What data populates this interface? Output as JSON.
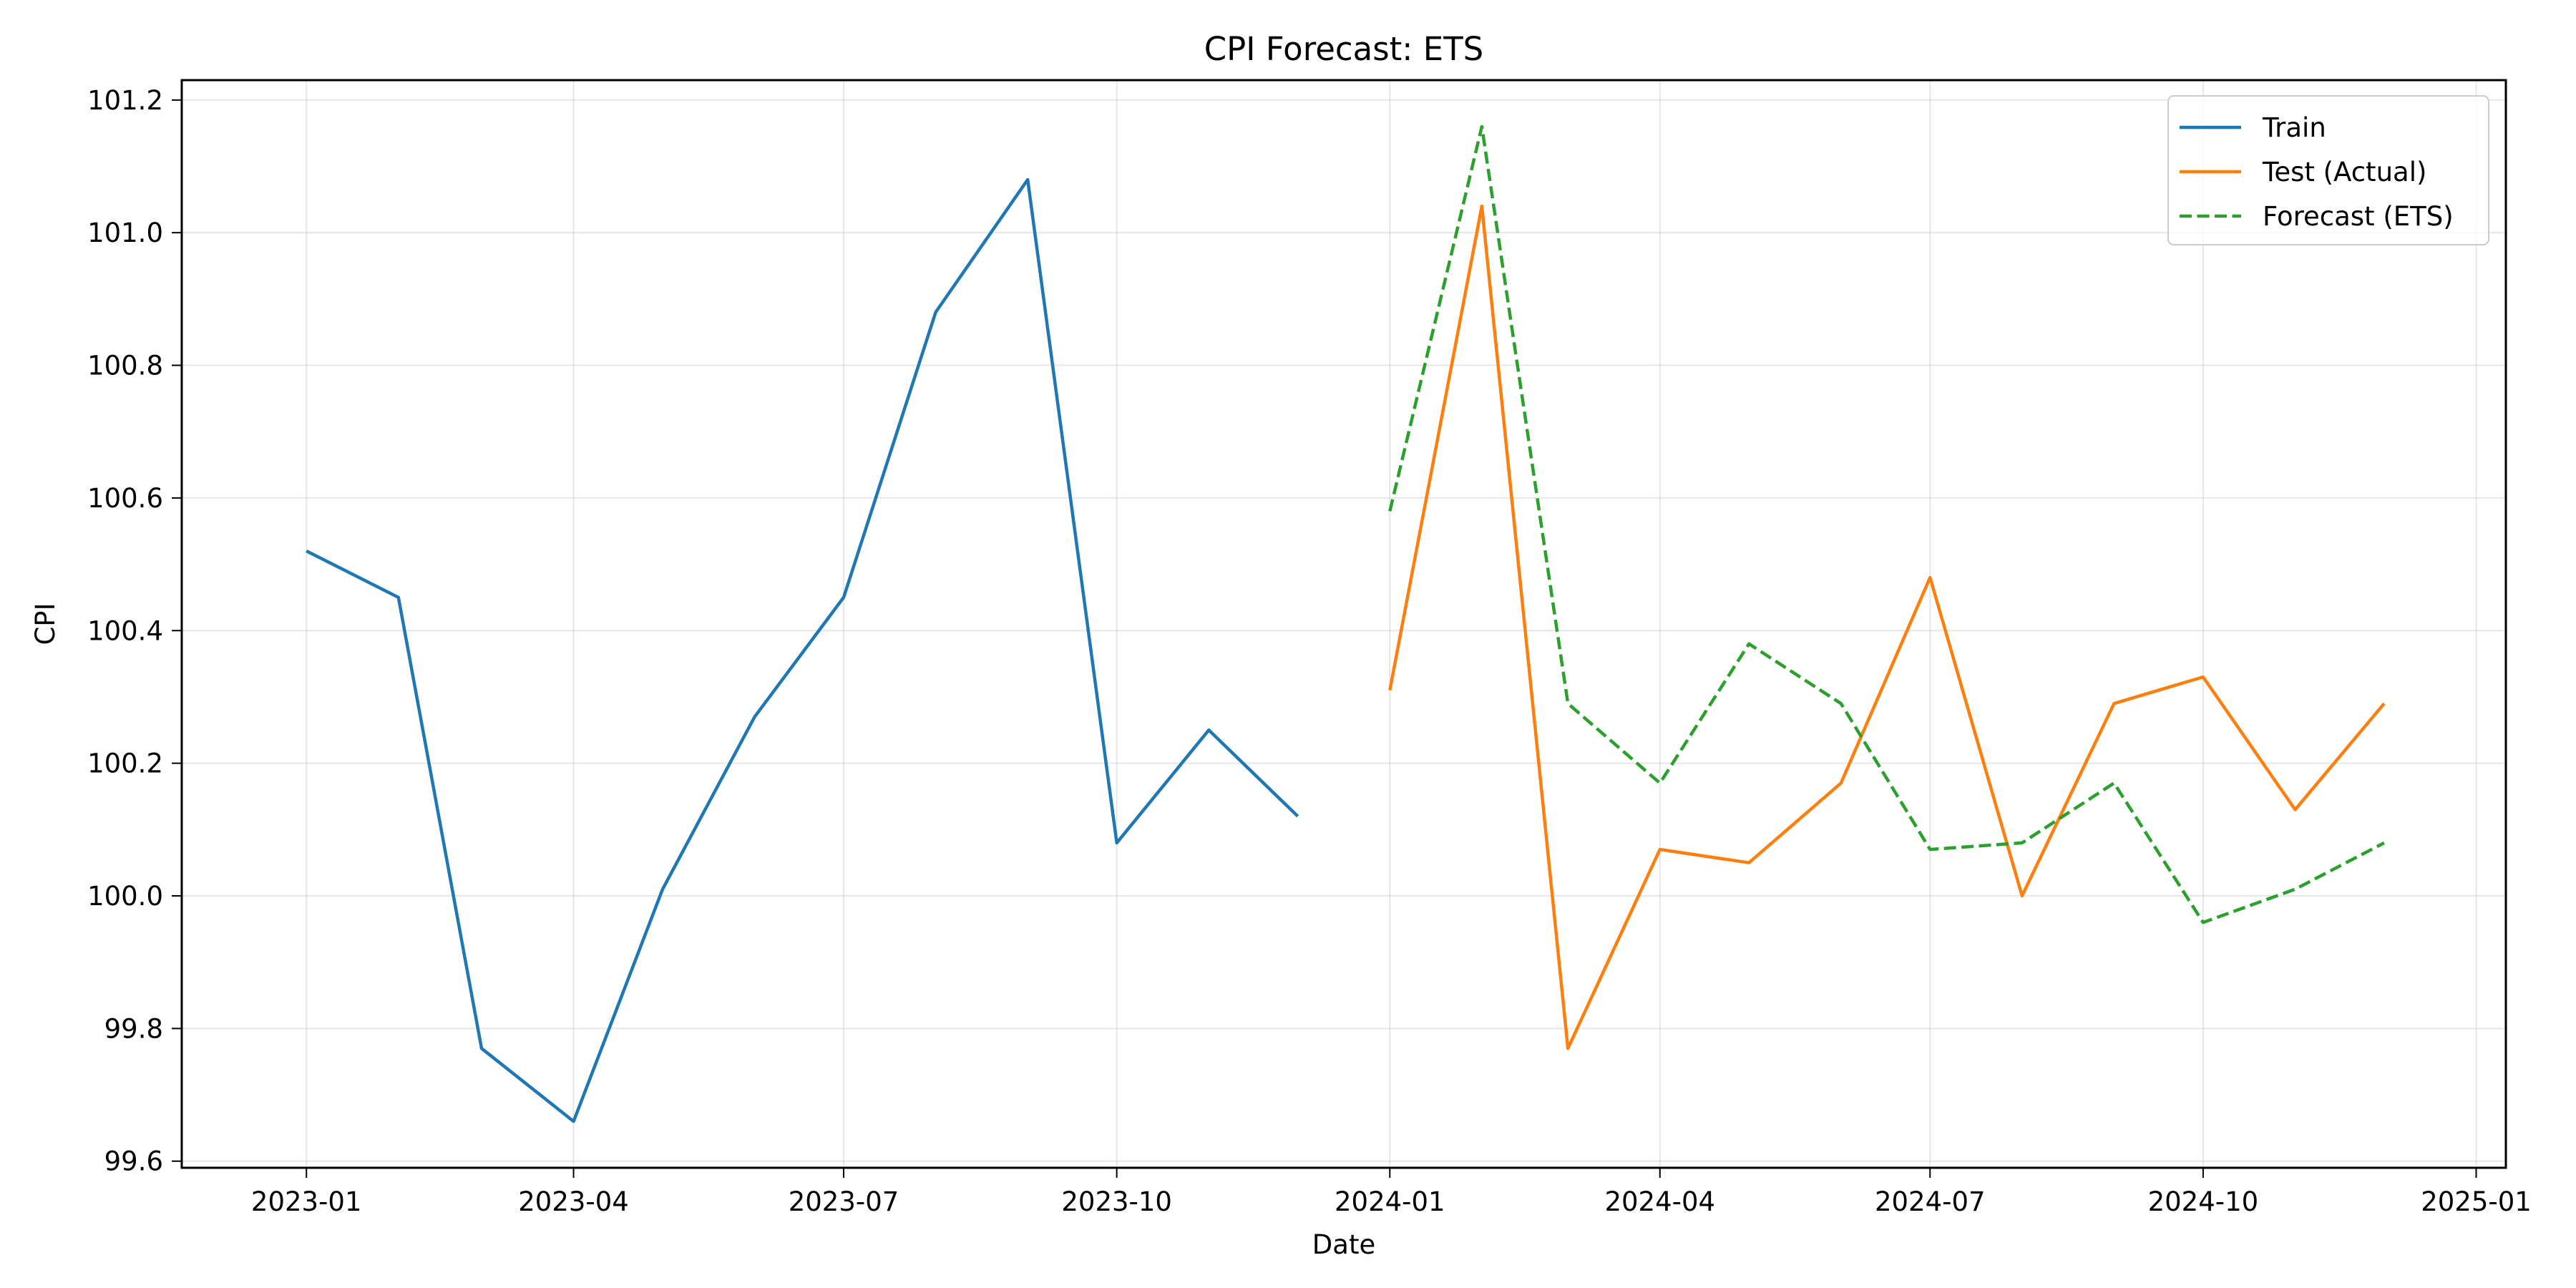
{
  "chart_data": {
    "type": "line",
    "title": "CPI Forecast: ETS",
    "xlabel": "Date",
    "ylabel": "CPI",
    "x_axis_type": "date",
    "xlim": [
      "2022-11-20",
      "2025-01-11"
    ],
    "ylim": [
      99.59,
      101.23
    ],
    "x_ticks": [
      "2023-01",
      "2023-04",
      "2023-07",
      "2023-10",
      "2024-01",
      "2024-04",
      "2024-07",
      "2024-10",
      "2025-01"
    ],
    "y_ticks": [
      99.6,
      99.8,
      100.0,
      100.2,
      100.4,
      100.6,
      100.8,
      101.0,
      101.2
    ],
    "grid": true,
    "legend_position": "top-right",
    "series": [
      {
        "name": "Train",
        "color": "#1f77b4",
        "line_style": "solid",
        "x": [
          "2023-01-01",
          "2023-02-01",
          "2023-03-01",
          "2023-04-01",
          "2023-05-01",
          "2023-06-01",
          "2023-07-01",
          "2023-08-01",
          "2023-09-01",
          "2023-10-01",
          "2023-11-01",
          "2023-12-01"
        ],
        "y": [
          100.52,
          100.45,
          99.77,
          99.66,
          100.01,
          100.27,
          100.45,
          100.88,
          101.08,
          100.08,
          100.25,
          100.12
        ]
      },
      {
        "name": "Test (Actual)",
        "color": "#ff7f0e",
        "line_style": "solid",
        "x": [
          "2024-01-01",
          "2024-02-01",
          "2024-03-01",
          "2024-04-01",
          "2024-05-01",
          "2024-06-01",
          "2024-07-01",
          "2024-08-01",
          "2024-09-01",
          "2024-10-01",
          "2024-11-01",
          "2024-12-01"
        ],
        "y": [
          100.31,
          101.04,
          99.77,
          100.07,
          100.05,
          100.17,
          100.48,
          100.0,
          100.29,
          100.33,
          100.13,
          100.29
        ]
      },
      {
        "name": "Forecast (ETS)",
        "color": "#2ca02c",
        "line_style": "dashed",
        "x": [
          "2024-01-01",
          "2024-02-01",
          "2024-03-01",
          "2024-04-01",
          "2024-05-01",
          "2024-06-01",
          "2024-07-01",
          "2024-08-01",
          "2024-09-01",
          "2024-10-01",
          "2024-11-01",
          "2024-12-01"
        ],
        "y": [
          100.58,
          101.16,
          100.29,
          100.17,
          100.38,
          100.29,
          100.07,
          100.08,
          100.17,
          99.96,
          100.01,
          100.08
        ]
      }
    ]
  }
}
